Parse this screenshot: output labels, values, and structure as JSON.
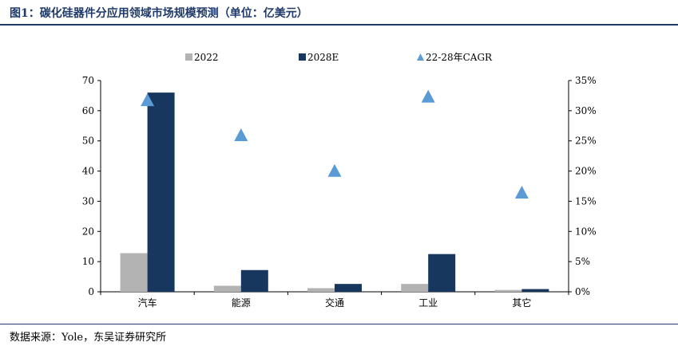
{
  "header": {
    "title": "图1：碳化硅器件分应用领域市场规模预测（单位：亿美元）"
  },
  "footer": {
    "source": "数据来源：Yole，东吴证券研究所"
  },
  "chart_data": {
    "type": "bar",
    "categories": [
      "汽车",
      "能源",
      "交通",
      "工业",
      "其它"
    ],
    "series": [
      {
        "name": "2022",
        "type": "bar",
        "axis": "left",
        "color": "#b3b3b3",
        "values": [
          12.8,
          2.0,
          1.2,
          2.6,
          0.6
        ]
      },
      {
        "name": "2028E",
        "type": "bar",
        "axis": "left",
        "color": "#17375e",
        "values": [
          66,
          7.2,
          2.6,
          12.5,
          0.9
        ]
      },
      {
        "name": "22-28年CAGR",
        "type": "scatter",
        "axis": "right",
        "marker": "triangle",
        "color": "#5b9bd5",
        "values": [
          0.316,
          0.258,
          0.199,
          0.322,
          0.163
        ]
      }
    ],
    "y_left": {
      "range": [
        0,
        70
      ],
      "ticks": [
        "0",
        "10",
        "20",
        "30",
        "40",
        "50",
        "60",
        "70"
      ]
    },
    "y_right": {
      "range": [
        0,
        0.35
      ],
      "ticks": [
        "0%",
        "5%",
        "10%",
        "15%",
        "20%",
        "25%",
        "30%",
        "35%"
      ]
    },
    "legend": {
      "position": "top"
    },
    "grid": false
  }
}
